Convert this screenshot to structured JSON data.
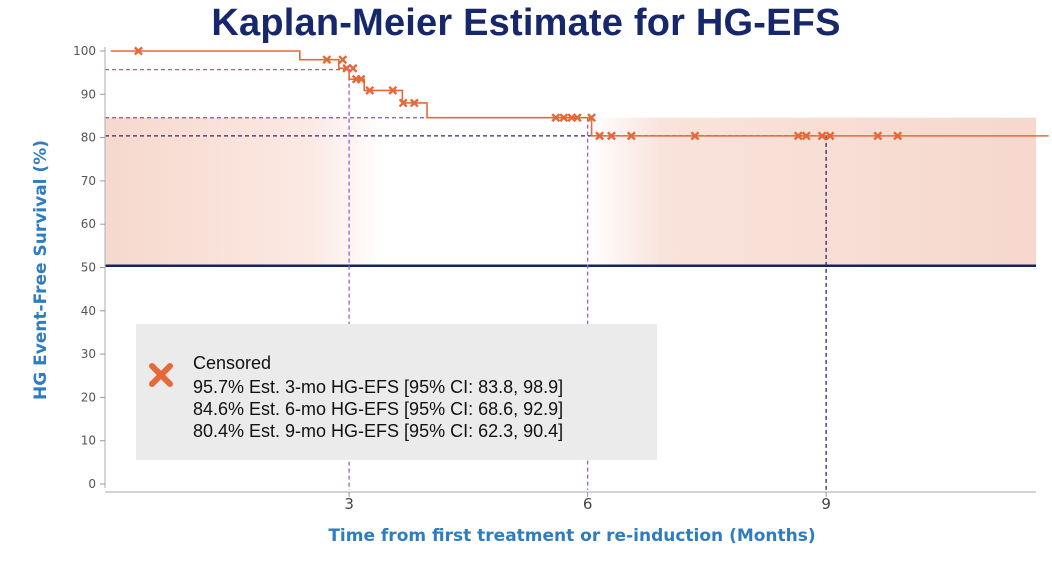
{
  "title": "Kaplan-Meier Estimate for HG-EFS",
  "chart_data": {
    "type": "line",
    "title": "Kaplan-Meier Estimate for HG-EFS",
    "xlabel": "Time from first treatment or re-induction (Months)",
    "ylabel": "HG Event-Free Survival (%)",
    "xlim": [
      0,
      11.8
    ],
    "ylim": [
      0,
      100
    ],
    "x_ticks": [
      3,
      6,
      9
    ],
    "y_ticks": [
      0,
      10,
      20,
      30,
      40,
      50,
      60,
      70,
      80,
      90,
      100
    ],
    "grid": false,
    "legend_position": "bottom-left",
    "colors": {
      "curve": "#e5693a",
      "band": "#f6d6cb",
      "reference": "#152466",
      "guide": "#9b5fd0",
      "guide_dark": "#37226b"
    },
    "series": [
      {
        "name": "",
        "step_points": [
          [
            0,
            100
          ],
          [
            2.38,
            100
          ],
          [
            2.38,
            98
          ],
          [
            2.87,
            98
          ],
          [
            2.87,
            96
          ],
          [
            2.98,
            96
          ],
          [
            2.98,
            95.7
          ],
          [
            3.0,
            95.7
          ],
          [
            3.0,
            93.5
          ],
          [
            3.19,
            93.5
          ],
          [
            3.19,
            90.9
          ],
          [
            3.42,
            90.9
          ],
          [
            3.42,
            90.9
          ],
          [
            3.67,
            90.9
          ],
          [
            3.67,
            88
          ],
          [
            3.98,
            88
          ],
          [
            3.98,
            84.6
          ],
          [
            6.05,
            84.6
          ],
          [
            6.05,
            80.4
          ],
          [
            11.8,
            80.4
          ]
        ],
        "censored": [
          [
            0.35,
            100
          ],
          [
            2.72,
            98
          ],
          [
            2.92,
            98
          ],
          [
            2.97,
            96
          ],
          [
            3.05,
            96
          ],
          [
            3.09,
            93.5
          ],
          [
            3.15,
            93.5
          ],
          [
            3.26,
            90.9
          ],
          [
            3.55,
            90.9
          ],
          [
            3.68,
            88
          ],
          [
            3.82,
            88
          ],
          [
            5.6,
            84.6
          ],
          [
            5.7,
            84.6
          ],
          [
            5.8,
            84.6
          ],
          [
            5.87,
            84.6
          ],
          [
            6.05,
            84.6
          ],
          [
            6.15,
            80.4
          ],
          [
            6.3,
            80.4
          ],
          [
            6.55,
            80.4
          ],
          [
            7.35,
            80.4
          ],
          [
            8.65,
            80.4
          ],
          [
            8.75,
            80.4
          ],
          [
            8.95,
            80.4
          ],
          [
            9.05,
            80.4
          ],
          [
            9.65,
            80.4
          ],
          [
            9.9,
            80.4
          ]
        ]
      }
    ],
    "confidence_band": {
      "upper": 84.6,
      "lower": 50.4,
      "from": 0,
      "to": 11.8
    },
    "reference_line": 50.4,
    "estimates": [
      {
        "month": 3,
        "value": 95.7
      },
      {
        "month": 6,
        "value": 84.6
      },
      {
        "month": 9,
        "value": 80.4
      }
    ]
  },
  "legend": {
    "censored_label": "Censored",
    "rows": [
      "95.7% Est. 3-mo HG-EFS [95% CI: 83.8, 98.9]",
      "84.6% Est. 6-mo HG-EFS [95% CI: 68.6, 92.9]",
      "80.4% Est. 9-mo HG-EFS [95% CI: 62.3, 90.4]"
    ],
    "icon": "cross-icon"
  }
}
